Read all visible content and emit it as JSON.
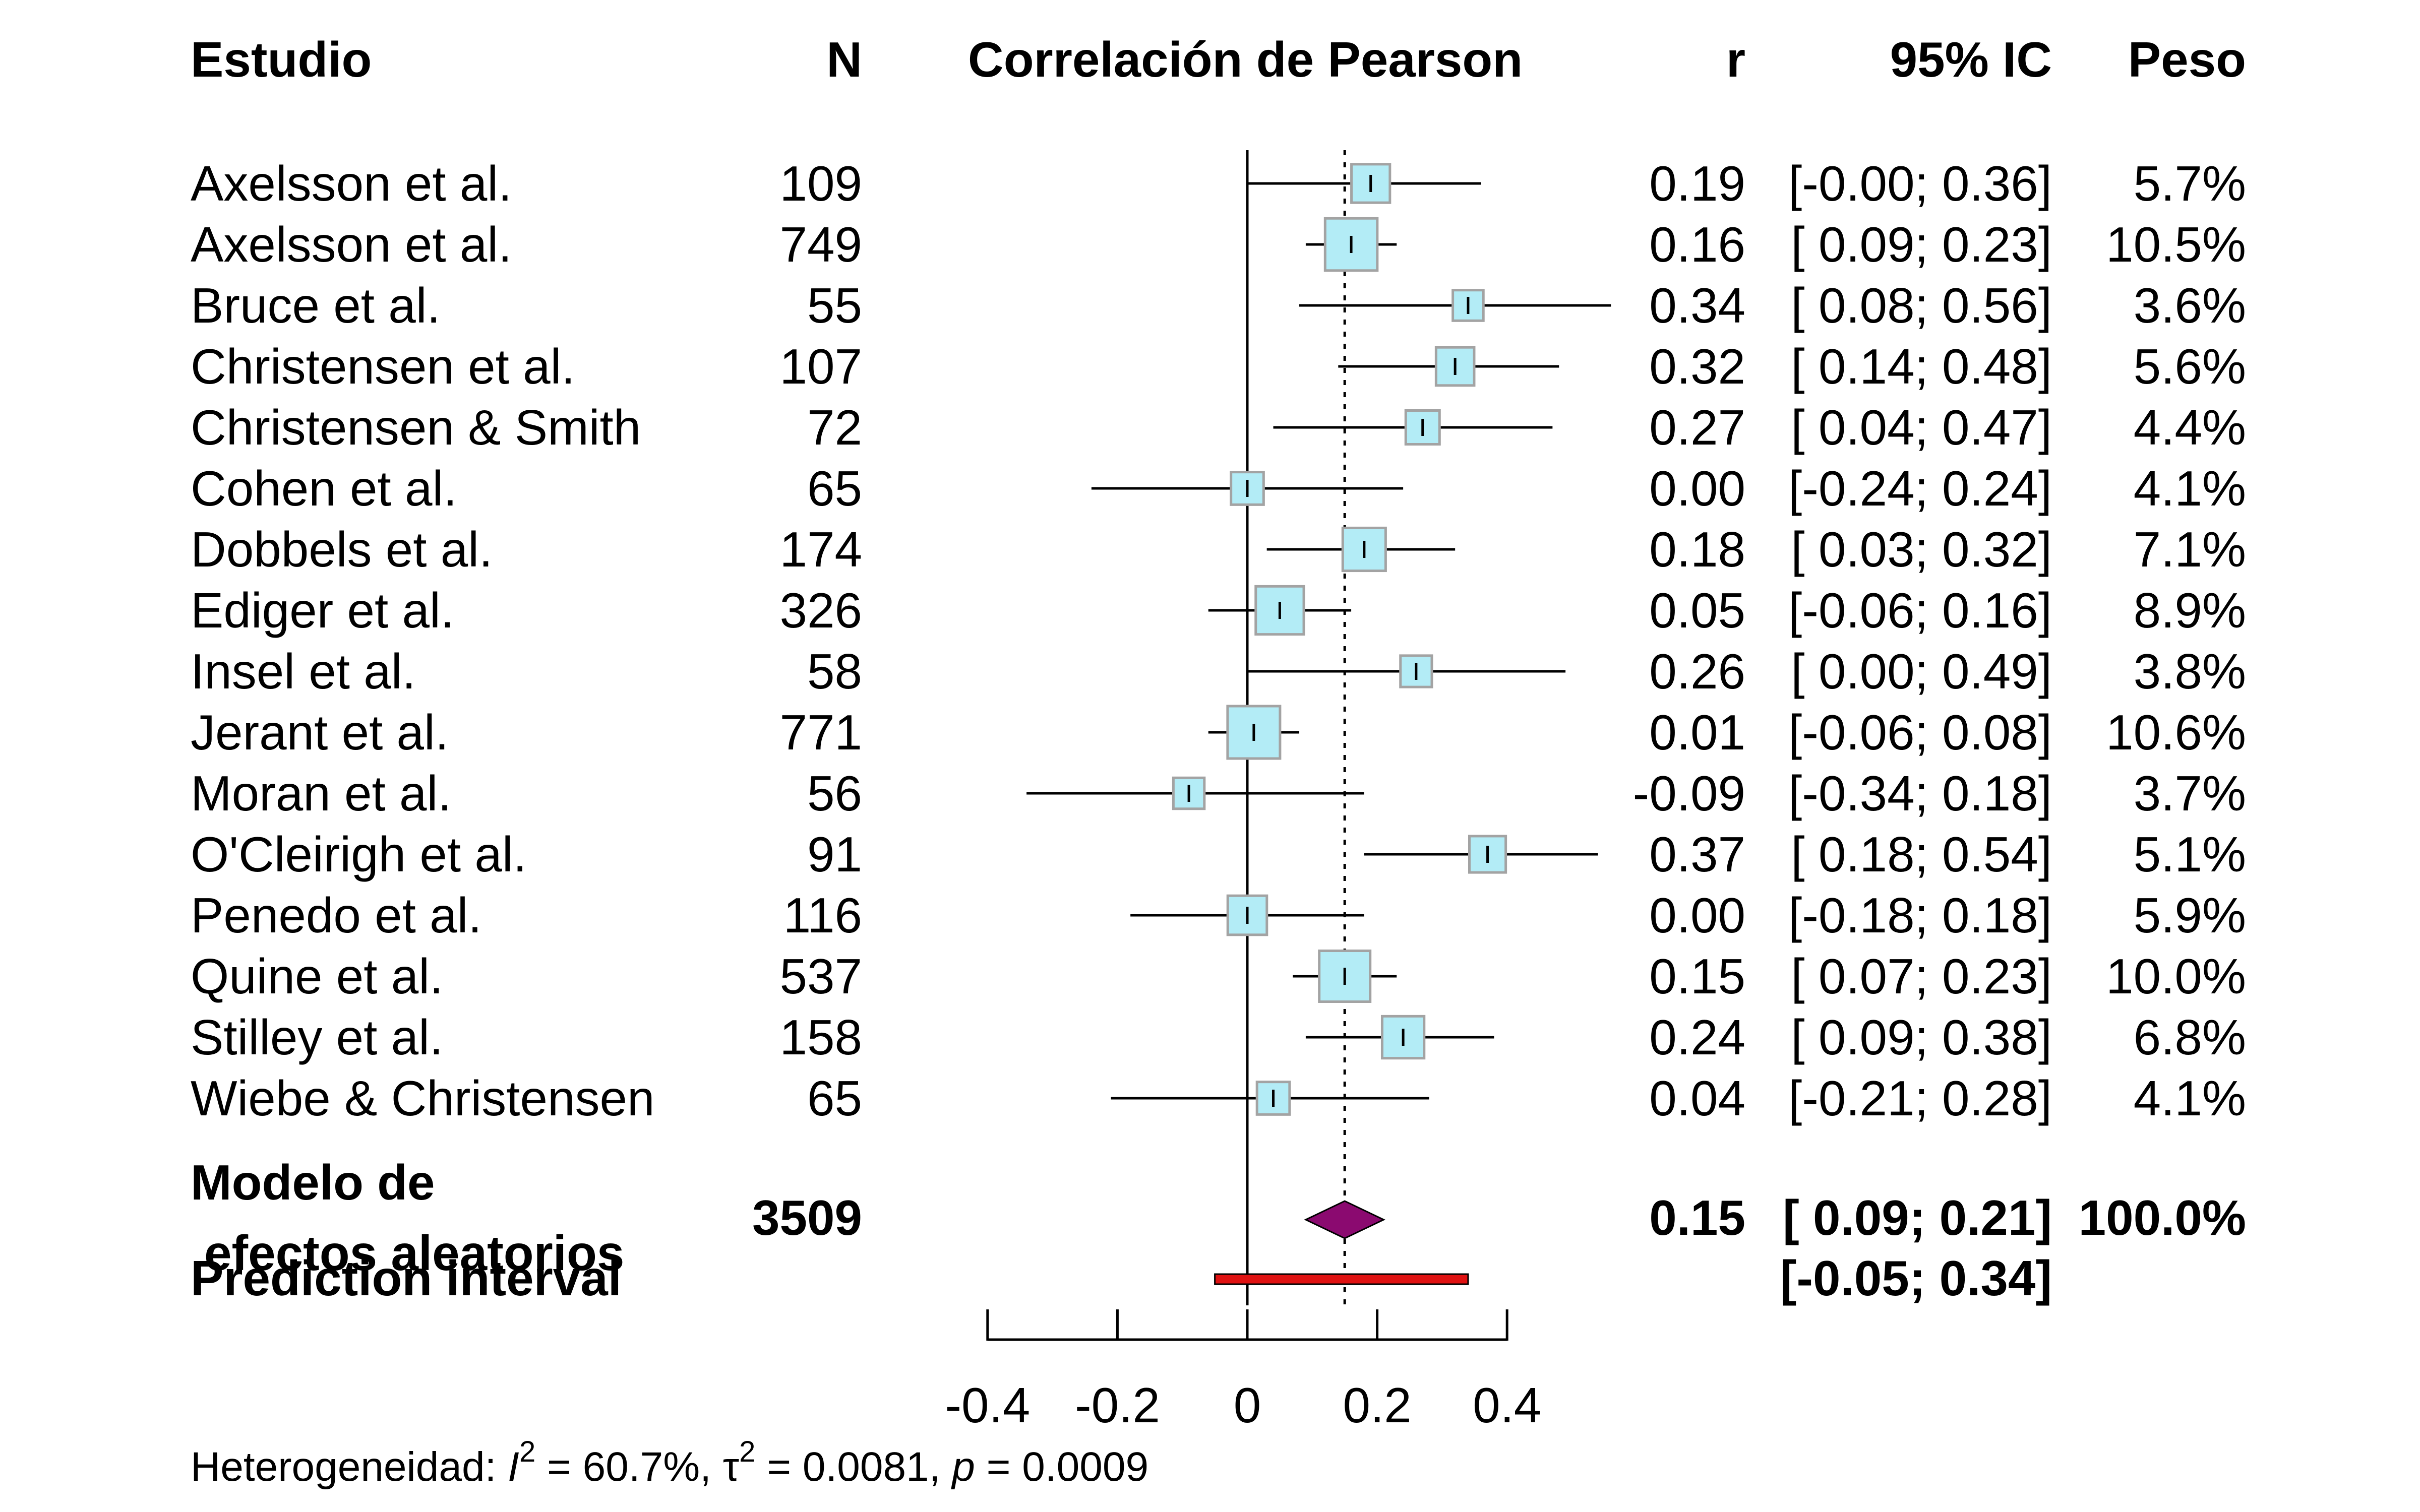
{
  "chart_data": {
    "type": "forest",
    "headers": {
      "study": "Estudio",
      "n": "N",
      "plot": "Correlación de Pearson",
      "r": "r",
      "ci": "95% IC",
      "weight": "Peso"
    },
    "studies": [
      {
        "name": "Axelsson et al.",
        "n": "109",
        "r": 0.19,
        "lower": 0.0,
        "upper": 0.36,
        "r_text": "0.19",
        "ci_text": "[-0.00; 0.36]",
        "weight": 5.7,
        "weight_text": "5.7%"
      },
      {
        "name": "Axelsson et al.",
        "n": "749",
        "r": 0.16,
        "lower": 0.09,
        "upper": 0.23,
        "r_text": "0.16",
        "ci_text": "[ 0.09; 0.23]",
        "weight": 10.5,
        "weight_text": "10.5%"
      },
      {
        "name": "Bruce et al.",
        "n": "55",
        "r": 0.34,
        "lower": 0.08,
        "upper": 0.56,
        "r_text": "0.34",
        "ci_text": "[ 0.08; 0.56]",
        "weight": 3.6,
        "weight_text": "3.6%"
      },
      {
        "name": "Christensen et al.",
        "n": "107",
        "r": 0.32,
        "lower": 0.14,
        "upper": 0.48,
        "r_text": "0.32",
        "ci_text": "[ 0.14; 0.48]",
        "weight": 5.6,
        "weight_text": "5.6%"
      },
      {
        "name": "Christensen & Smith",
        "n": "72",
        "r": 0.27,
        "lower": 0.04,
        "upper": 0.47,
        "r_text": "0.27",
        "ci_text": "[ 0.04; 0.47]",
        "weight": 4.4,
        "weight_text": "4.4%"
      },
      {
        "name": "Cohen et al.",
        "n": "65",
        "r": 0.0,
        "lower": -0.24,
        "upper": 0.24,
        "r_text": "0.00",
        "ci_text": "[-0.24; 0.24]",
        "weight": 4.1,
        "weight_text": "4.1%"
      },
      {
        "name": "Dobbels et al.",
        "n": "174",
        "r": 0.18,
        "lower": 0.03,
        "upper": 0.32,
        "r_text": "0.18",
        "ci_text": "[ 0.03; 0.32]",
        "weight": 7.1,
        "weight_text": "7.1%"
      },
      {
        "name": "Ediger et al.",
        "n": "326",
        "r": 0.05,
        "lower": -0.06,
        "upper": 0.16,
        "r_text": "0.05",
        "ci_text": "[-0.06; 0.16]",
        "weight": 8.9,
        "weight_text": "8.9%"
      },
      {
        "name": "Insel et al.",
        "n": "58",
        "r": 0.26,
        "lower": 0.0,
        "upper": 0.49,
        "r_text": "0.26",
        "ci_text": "[ 0.00; 0.49]",
        "weight": 3.8,
        "weight_text": "3.8%"
      },
      {
        "name": "Jerant et al.",
        "n": "771",
        "r": 0.01,
        "lower": -0.06,
        "upper": 0.08,
        "r_text": "0.01",
        "ci_text": "[-0.06; 0.08]",
        "weight": 10.6,
        "weight_text": "10.6%"
      },
      {
        "name": "Moran et al.",
        "n": "56",
        "r": -0.09,
        "lower": -0.34,
        "upper": 0.18,
        "r_text": "-0.09",
        "ci_text": "[-0.34; 0.18]",
        "weight": 3.7,
        "weight_text": "3.7%"
      },
      {
        "name": "O'Cleirigh et al.",
        "n": "91",
        "r": 0.37,
        "lower": 0.18,
        "upper": 0.54,
        "r_text": "0.37",
        "ci_text": "[ 0.18; 0.54]",
        "weight": 5.1,
        "weight_text": "5.1%"
      },
      {
        "name": "Penedo et al.",
        "n": "116",
        "r": 0.0,
        "lower": -0.18,
        "upper": 0.18,
        "r_text": "0.00",
        "ci_text": "[-0.18; 0.18]",
        "weight": 5.9,
        "weight_text": "5.9%"
      },
      {
        "name": "Quine et al.",
        "n": "537",
        "r": 0.15,
        "lower": 0.07,
        "upper": 0.23,
        "r_text": "0.15",
        "ci_text": "[ 0.07; 0.23]",
        "weight": 10.0,
        "weight_text": "10.0%"
      },
      {
        "name": "Stilley et al.",
        "n": "158",
        "r": 0.24,
        "lower": 0.09,
        "upper": 0.38,
        "r_text": "0.24",
        "ci_text": "[ 0.09; 0.38]",
        "weight": 6.8,
        "weight_text": "6.8%"
      },
      {
        "name": "Wiebe & Christensen",
        "n": "65",
        "r": 0.04,
        "lower": -0.21,
        "upper": 0.28,
        "r_text": "0.04",
        "ci_text": "[-0.21; 0.28]",
        "weight": 4.1,
        "weight_text": "4.1%"
      }
    ],
    "pooled": {
      "label_line1": "Modelo de",
      "label_line2": "efectos aleatorios",
      "n": "3509",
      "r": 0.15,
      "lower": 0.09,
      "upper": 0.21,
      "r_text": "0.15",
      "ci_text": "[ 0.09; 0.21]",
      "weight_text": "100.0%"
    },
    "prediction_interval": {
      "label": "Prediction interval",
      "lower": -0.05,
      "upper": 0.34,
      "ci_text": "[-0.05; 0.34]"
    },
    "x_axis": {
      "ticks": [
        -0.4,
        -0.2,
        0,
        0.2,
        0.4
      ],
      "tick_labels": [
        "-0.4",
        "-0.2",
        "0",
        "0.2",
        "0.4"
      ],
      "range": [
        -0.4,
        0.4
      ]
    },
    "xlim": [
      -0.4,
      0.6
    ],
    "null_line": 0,
    "heterogeneity": {
      "prefix": "Heterogeneidad: ",
      "i2_symbol": "I",
      "i2_value": " = 60.7%, ",
      "tau2_symbol": "τ",
      "tau2_value": " = 0.0081, ",
      "p_symbol": "p",
      "p_value": " = 0.0009",
      "superscript": "2"
    },
    "colors": {
      "study_box_fill": "#b3ecf6",
      "study_box_stroke": "#a3a3a3",
      "diamond_fill": "#8b0a70",
      "prediction_fill": "#e01212",
      "line": "#000000"
    }
  }
}
